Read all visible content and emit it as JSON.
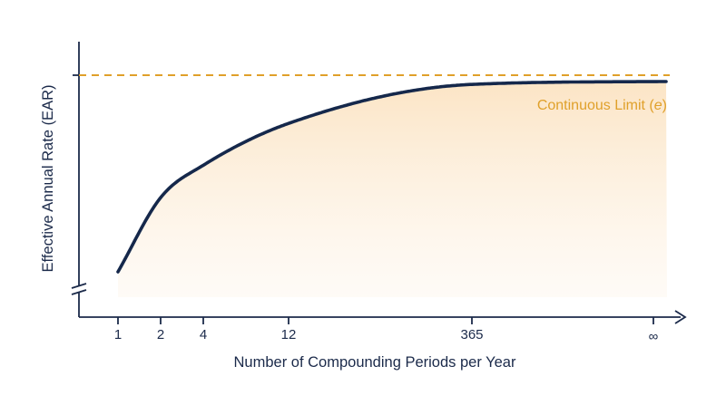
{
  "chart_data": {
    "type": "line",
    "title": "",
    "xlabel": "Number of Compounding Periods per Year",
    "ylabel": "Effective Annual Rate (EAR)",
    "x_ticks": [
      "1",
      "2",
      "4",
      "12",
      "365",
      "∞"
    ],
    "y_axis_break": true,
    "y_ticks_labeled": false,
    "series": [
      {
        "values_relative_to_limit": [
          0.0,
          0.39,
          0.56,
          0.78,
          0.985,
          1.0
        ]
      }
    ],
    "reference_line": {
      "label_prefix": "Continuous Limit (",
      "label_var": "e",
      "label_suffix": ")",
      "style": "dashed"
    },
    "grid": false,
    "colors": {
      "curve": "#15284b",
      "axis": "#1b2a4a",
      "limit": "#e0a02a",
      "fill": "#fbe3c2"
    }
  }
}
